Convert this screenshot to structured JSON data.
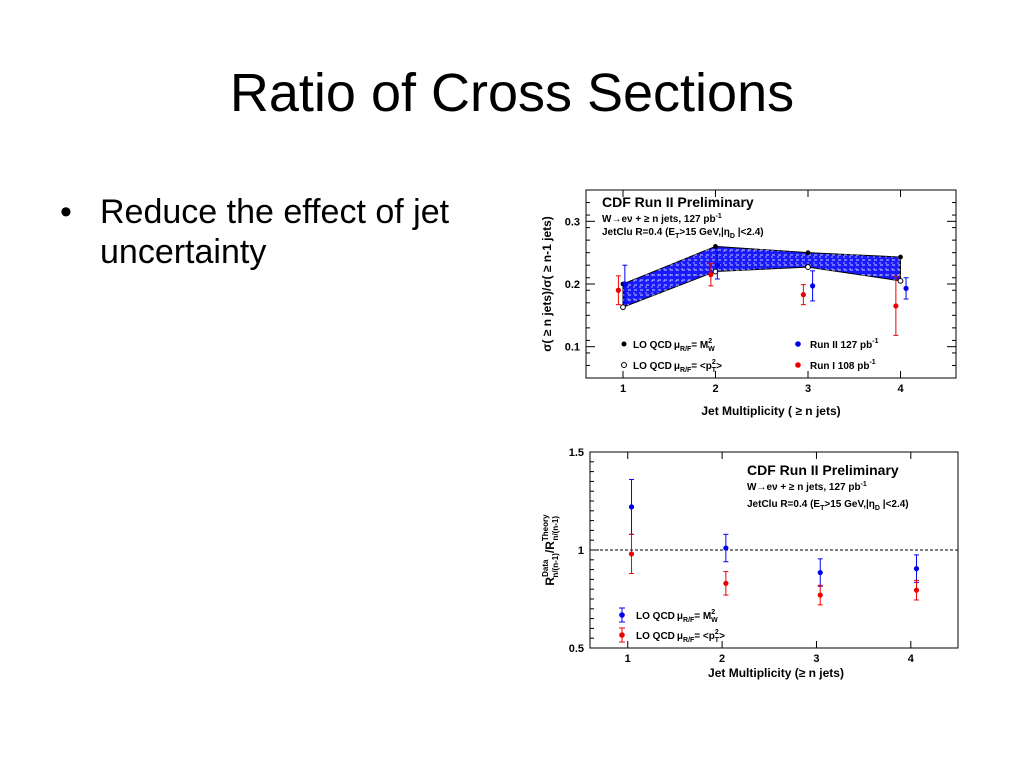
{
  "slide": {
    "title": "Ratio of Cross Sections",
    "bullets": [
      "Reduce the effect of jet uncertainty"
    ]
  },
  "colors": {
    "run2": "#0000ee",
    "run1": "#ee0000",
    "band": "#1a1aff"
  },
  "chart_data": [
    {
      "type": "scatter",
      "label_title": "CDF Run II Preliminary",
      "label_line1": "W→eν + ≥ n jets, 127 pb",
      "label_line1_sup": "-1",
      "label_line2": "JetClu R=0.4 (E",
      "label_line2_sub": "T",
      "label_line2b": ">15 GeV,|η",
      "label_line2_sub2": "D",
      "label_line2c": " |<2.4)",
      "xlabel": "Jet Multiplicity ( ≥ n jets)",
      "ylabel": "σ( ≥ n jets)/σ( ≥ n-1 jets)",
      "xlim": [
        0.6,
        4.6
      ],
      "ylim": [
        0.05,
        0.35
      ],
      "xticks": [
        "1",
        "2",
        "3",
        "4"
      ],
      "yticks": [
        "0.1",
        "0.2",
        "0.3"
      ],
      "series": [
        {
          "name": "LO QCD μR/F= M²W",
          "legend": "LO QCD",
          "legend_mu": "μ",
          "legend_sub": "R/F",
          "legend_rest": "= M",
          "legend_sup": "2",
          "legend_sub2": "W",
          "marker": "filled",
          "x": [
            1,
            2,
            3,
            4
          ],
          "y": [
            0.2,
            0.26,
            0.25,
            0.243
          ]
        },
        {
          "name": "LO QCD μR/F= <p²T>",
          "legend": "LO QCD",
          "legend_mu": "μ",
          "legend_sub": "R/F",
          "legend_rest": "= <p",
          "legend_sup": "2",
          "legend_sub2": "T",
          "legend_end": ">",
          "marker": "open",
          "x": [
            1,
            2,
            3,
            4
          ],
          "y": [
            0.163,
            0.22,
            0.227,
            0.205
          ]
        },
        {
          "name": "Run II 127 pb⁻¹",
          "legend": "Run II 127 pb",
          "legend_sup": "-1",
          "color": "#0000ee",
          "x": [
            1.02,
            2.02,
            3.05,
            4.06
          ],
          "y": [
            0.2,
            0.23,
            0.197,
            0.193
          ],
          "err": [
            0.03,
            0.022,
            0.024,
            0.017
          ]
        },
        {
          "name": "Run I 108 pb⁻¹",
          "legend": "Run I 108 pb",
          "legend_sup": "-1",
          "color": "#ee0000",
          "x": [
            0.95,
            1.95,
            2.95,
            3.95
          ],
          "y": [
            0.19,
            0.215,
            0.183,
            0.165
          ],
          "err": [
            0.023,
            0.018,
            0.016,
            0.047
          ]
        }
      ]
    },
    {
      "type": "scatter",
      "label_title": "CDF Run II Preliminary",
      "label_line1": "W→eν + ≥ n jets, 127 pb",
      "label_line1_sup": "-1",
      "label_line2": "JetClu R=0.4 (E",
      "label_line2_sub": "T",
      "label_line2b": ">15 GeV,|η",
      "label_line2_sub2": "D",
      "label_line2c": " |<2.4)",
      "xlabel": "Jet Multiplicity (≥ n jets)",
      "ylabel": "R",
      "ylabel_sup1": "Data",
      "ylabel_sub1": "n/(n-1)",
      "ylabel_mid": "/R",
      "ylabel_sup2": "Theory",
      "ylabel_sub2": "n/(n-1)",
      "xlim": [
        0.6,
        4.5
      ],
      "ylim": [
        0.5,
        1.5
      ],
      "xticks": [
        "1",
        "2",
        "3",
        "4"
      ],
      "yticks": [
        "0.5",
        "1",
        "1.5"
      ],
      "reference_line": 1,
      "series": [
        {
          "name": "LO QCD μR/F= M²W",
          "legend": "LO QCD",
          "legend_mu": "μ",
          "legend_sub": "R/F",
          "legend_rest": "= M",
          "legend_sup": "2",
          "legend_sub2": "W",
          "color": "#0000ee",
          "x": [
            1.04,
            2.04,
            3.04,
            4.06
          ],
          "y": [
            1.22,
            1.01,
            0.885,
            0.905
          ],
          "err": [
            0.14,
            0.07,
            0.07,
            0.07
          ]
        },
        {
          "name": "LO QCD μR/F= <p²T>",
          "legend": "LO QCD",
          "legend_mu": "μ",
          "legend_sub": "R/F",
          "legend_rest": "= <p",
          "legend_sup": "2",
          "legend_sub2": "T",
          "legend_end": ">",
          "color": "#ee0000",
          "x": [
            1.04,
            2.04,
            3.04,
            4.06
          ],
          "y": [
            0.98,
            0.83,
            0.77,
            0.795
          ],
          "err": [
            0.1,
            0.06,
            0.05,
            0.05
          ]
        }
      ]
    }
  ]
}
